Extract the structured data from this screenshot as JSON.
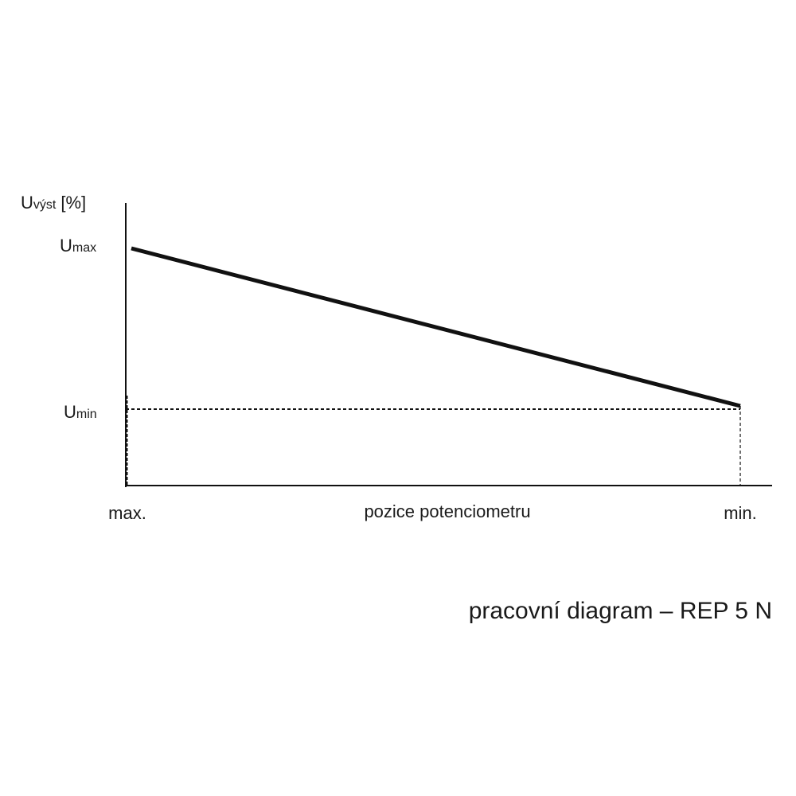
{
  "y_axis": {
    "label": {
      "symbol": "U",
      "subscript": "výst",
      "unit": "[%]"
    }
  },
  "levels": [
    {
      "symbol": "U",
      "subscript": "max"
    },
    {
      "symbol": "U",
      "subscript": "min"
    }
  ],
  "x_axis": {
    "label": "pozice potenciometru",
    "start": "max.",
    "end": "min."
  },
  "caption": "pracovní diagram – REP 5 N"
}
